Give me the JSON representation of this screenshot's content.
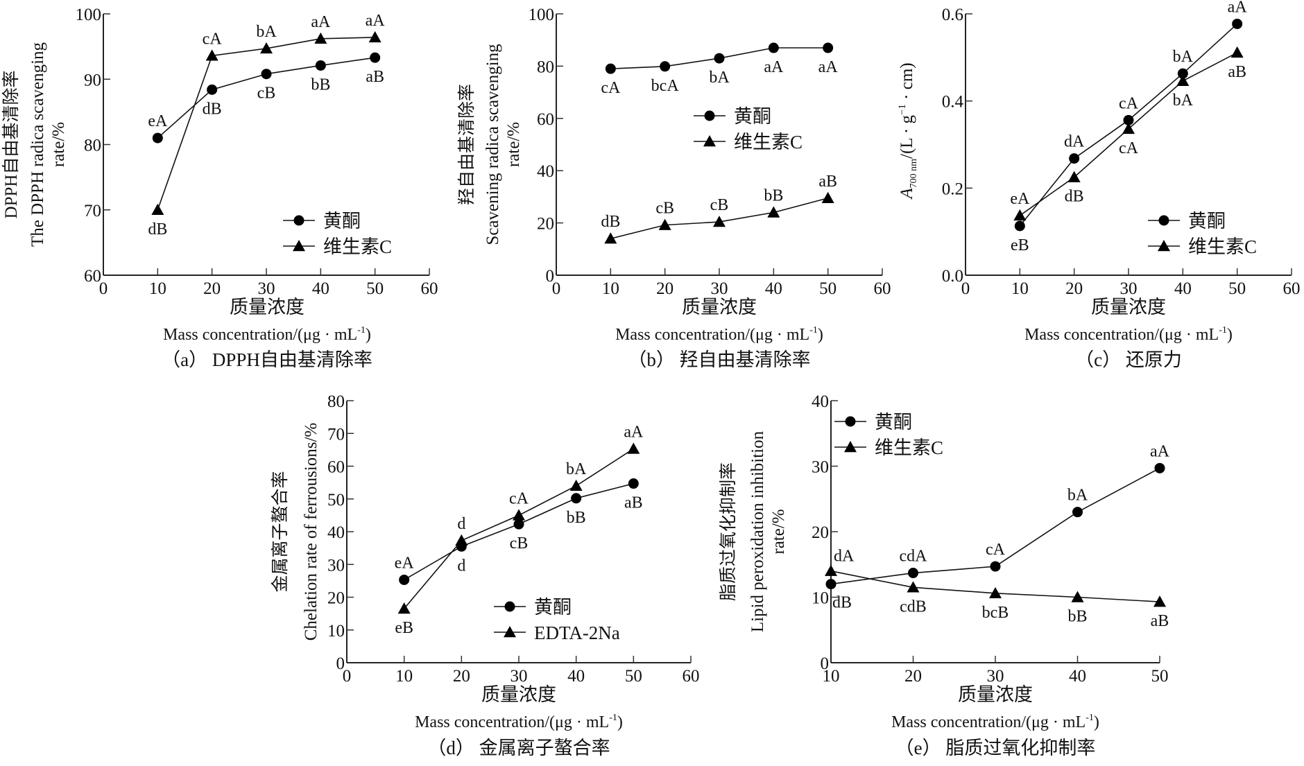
{
  "figure": {
    "xlabel_cn": "质量浓度",
    "xlabel_en": "Mass concentration/(μg · mL",
    "xlabel_en_sup": "-1",
    "xlabel_en_close": ")"
  },
  "chart_data": [
    {
      "id": "a",
      "type": "line",
      "caption": "（a） DPPH自由基清除率",
      "ylabel": [
        "DPPH自由基清除率",
        "The DPPH radica scavenging",
        "rate/%"
      ],
      "xlabel": "质量浓度 Mass concentration/(μg·mL⁻¹)",
      "xlim": [
        0,
        60
      ],
      "xticks": [
        0,
        10,
        20,
        30,
        40,
        50,
        60
      ],
      "ylim": [
        60,
        100
      ],
      "yticks": [
        "60",
        "70",
        "80",
        "90",
        "100"
      ],
      "ytick_values": [
        60,
        70,
        80,
        90,
        100
      ],
      "legend_position": "bottom-right",
      "x": [
        10,
        20,
        30,
        40,
        50
      ],
      "series": [
        {
          "name": "黄酮",
          "marker": "circle",
          "values": [
            81.0,
            88.4,
            90.8,
            92.1,
            93.3
          ],
          "labels": [
            "eA",
            "dB",
            "cB",
            "bB",
            "aB"
          ],
          "label_pos": [
            "above",
            "below",
            "below",
            "below",
            "below"
          ]
        },
        {
          "name": "维生素C",
          "marker": "triangle",
          "values": [
            70.0,
            93.6,
            94.7,
            96.2,
            96.4
          ],
          "labels": [
            "dB",
            "cA",
            "bA",
            "aA",
            "aA"
          ],
          "label_pos": [
            "below",
            "above",
            "above",
            "above",
            "above"
          ]
        }
      ]
    },
    {
      "id": "b",
      "type": "line",
      "caption": "（b） 羟自由基清除率",
      "ylabel": [
        "羟自由基清除率",
        "Scavening radica scavenging",
        "rate/%"
      ],
      "xlabel": "质量浓度 Mass concentration/(μg·mL⁻¹)",
      "xlim": [
        0,
        60
      ],
      "xticks": [
        0,
        10,
        20,
        30,
        40,
        50,
        60
      ],
      "ylim": [
        0,
        100
      ],
      "yticks": [
        "0",
        "20",
        "40",
        "60",
        "80",
        "100"
      ],
      "ytick_values": [
        0,
        20,
        40,
        60,
        80,
        100
      ],
      "legend_position": "center-right",
      "x": [
        10,
        20,
        30,
        40,
        50
      ],
      "series": [
        {
          "name": "黄酮",
          "marker": "circle",
          "values": [
            79.0,
            79.9,
            83.0,
            87.0,
            87.0
          ],
          "labels": [
            "cA",
            "bcA",
            "bA",
            "aA",
            "aA"
          ],
          "label_pos": [
            "below",
            "below",
            "below",
            "below",
            "below"
          ]
        },
        {
          "name": "维生素C",
          "marker": "triangle",
          "values": [
            14.0,
            19.2,
            20.4,
            24.0,
            29.5
          ],
          "labels": [
            "dB",
            "cB",
            "cB",
            "bB",
            "aB"
          ],
          "label_pos": [
            "above",
            "above",
            "above",
            "above",
            "above"
          ]
        }
      ]
    },
    {
      "id": "c",
      "type": "line",
      "caption": "（c） 还原力",
      "ylabel": [
        "A700 nm/(L · g⁻¹ · cm)"
      ],
      "ylabel_main": "A",
      "ylabel_sub": "700 nm",
      "ylabel_rest": "/(L · g",
      "ylabel_sup": "−1",
      "ylabel_end": " · cm)",
      "xlabel": "质量浓度 Mass concentration/(μg·mL⁻¹)",
      "xlim": [
        0,
        60
      ],
      "xticks": [
        0,
        10,
        20,
        30,
        40,
        50,
        60
      ],
      "ylim": [
        0,
        0.6
      ],
      "yticks": [
        "0.0",
        "0.2",
        "0.4",
        "0.6"
      ],
      "ytick_values": [
        0,
        0.2,
        0.4,
        0.6
      ],
      "legend_position": "bottom-right",
      "x": [
        10,
        20,
        30,
        40,
        50
      ],
      "series": [
        {
          "name": "黄酮",
          "marker": "circle",
          "values": [
            0.113,
            0.268,
            0.356,
            0.463,
            0.577
          ],
          "labels": [
            "eB",
            "dA",
            "cA",
            "bA",
            "aA"
          ],
          "label_pos": [
            "below",
            "above",
            "above",
            "above",
            "above"
          ]
        },
        {
          "name": "维生素C",
          "marker": "triangle",
          "values": [
            0.137,
            0.225,
            0.336,
            0.446,
            0.511
          ],
          "labels": [
            "eA",
            "dB",
            "cA",
            "bA",
            "aB"
          ],
          "label_pos": [
            "above",
            "below",
            "below",
            "below",
            "below"
          ]
        }
      ]
    },
    {
      "id": "d",
      "type": "line",
      "caption": "（d） 金属离子螯合率",
      "ylabel": [
        "金属离子螯合率",
        "Chelation rate of ferrousions/%"
      ],
      "xlabel": "质量浓度 Mass concentration/(μg·mL⁻¹)",
      "xlim": [
        0,
        60
      ],
      "xticks": [
        0,
        10,
        20,
        30,
        40,
        50,
        60
      ],
      "ylim": [
        0,
        80
      ],
      "yticks": [
        "0",
        "10",
        "20",
        "30",
        "40",
        "50",
        "60",
        "70",
        "80"
      ],
      "ytick_values": [
        0,
        10,
        20,
        30,
        40,
        50,
        60,
        70,
        80
      ],
      "legend_position": "bottom-right",
      "x": [
        10,
        20,
        30,
        40,
        50
      ],
      "series": [
        {
          "name": "黄酮",
          "marker": "circle",
          "values": [
            25.3,
            35.5,
            42.3,
            50.2,
            54.7
          ],
          "labels": [
            "eA",
            "d",
            "cB",
            "bB",
            "aB"
          ],
          "label_pos": [
            "above",
            "below",
            "below",
            "below",
            "below"
          ]
        },
        {
          "name": "EDTA-2Na",
          "marker": "triangle",
          "values": [
            16.5,
            37.3,
            45.0,
            54.0,
            65.3
          ],
          "labels": [
            "eB",
            "d",
            "cA",
            "bA",
            "aA"
          ],
          "label_pos": [
            "below",
            "above",
            "above",
            "above",
            "above"
          ]
        }
      ]
    },
    {
      "id": "e",
      "type": "line",
      "caption": "（e） 脂质过氧化抑制率",
      "ylabel": [
        "脂质过氧化抑制率",
        "Lipid peroxidation inhibition",
        "rate/%"
      ],
      "xlabel": "质量浓度 Mass concentration/(μg·mL⁻¹)",
      "xlim": [
        10,
        50
      ],
      "xticks": [
        10,
        20,
        30,
        40,
        50
      ],
      "ylim": [
        0,
        40
      ],
      "yticks": [
        "0",
        "10",
        "20",
        "30",
        "40"
      ],
      "ytick_values": [
        0,
        10,
        20,
        30,
        40
      ],
      "legend_position": "top-left",
      "x": [
        10,
        20,
        30,
        40,
        50
      ],
      "series": [
        {
          "name": "黄酮",
          "marker": "circle",
          "values": [
            12.0,
            13.7,
            14.7,
            23.0,
            29.7
          ],
          "labels": [
            "dB",
            "cdA",
            "cA",
            "bA",
            "aA"
          ],
          "label_pos": [
            "below-right",
            "above",
            "above",
            "above",
            "above"
          ]
        },
        {
          "name": "维生素C",
          "marker": "triangle",
          "values": [
            14.0,
            11.5,
            10.6,
            10.0,
            9.3
          ],
          "labels": [
            "dA",
            "cdB",
            "bcB",
            "bB",
            "aB"
          ],
          "label_pos": [
            "above-right",
            "below",
            "below",
            "below",
            "below"
          ]
        }
      ]
    }
  ]
}
